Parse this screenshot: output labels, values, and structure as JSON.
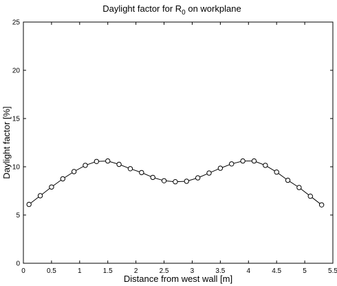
{
  "chart_data": {
    "type": "line",
    "title": "Daylight factor for R",
    "title_subscript": "0",
    "title_suffix": " on workplane",
    "xlabel": "Distance from west wall [m]",
    "ylabel": "Daylight factor [%]",
    "xlim": [
      0,
      5.5
    ],
    "ylim": [
      0,
      25
    ],
    "xticks": [
      0,
      0.5,
      1,
      1.5,
      2,
      2.5,
      3,
      3.5,
      4,
      4.5,
      5,
      5.5
    ],
    "xtick_labels": [
      "0",
      "0.5",
      "1",
      "1.5",
      "2",
      "2.5",
      "3",
      "3.5",
      "4",
      "4.5",
      "5",
      "5.5"
    ],
    "yticks": [
      0,
      5,
      10,
      15,
      20,
      25
    ],
    "ytick_labels": [
      "0",
      "5",
      "10",
      "15",
      "20",
      "25"
    ],
    "grid": false,
    "marker": "open-circle",
    "series": [
      {
        "x": [
          0.1,
          0.3,
          0.5,
          0.7,
          0.9,
          1.1,
          1.3,
          1.5,
          1.7,
          1.9,
          2.1,
          2.3,
          2.5,
          2.7,
          2.9,
          3.1,
          3.3,
          3.5,
          3.7,
          3.9,
          4.1,
          4.3,
          4.5,
          4.7,
          4.9,
          5.1,
          5.3
        ],
        "y": [
          6.1,
          7.0,
          7.9,
          8.75,
          9.5,
          10.15,
          10.55,
          10.6,
          10.25,
          9.8,
          9.4,
          8.9,
          8.55,
          8.45,
          8.5,
          8.85,
          9.35,
          9.85,
          10.3,
          10.6,
          10.6,
          10.15,
          9.45,
          8.6,
          7.85,
          6.95,
          6.05
        ]
      }
    ],
    "colors": {
      "line": "#000000",
      "marker_fill": "#ffffff",
      "axes": "#000000"
    }
  }
}
